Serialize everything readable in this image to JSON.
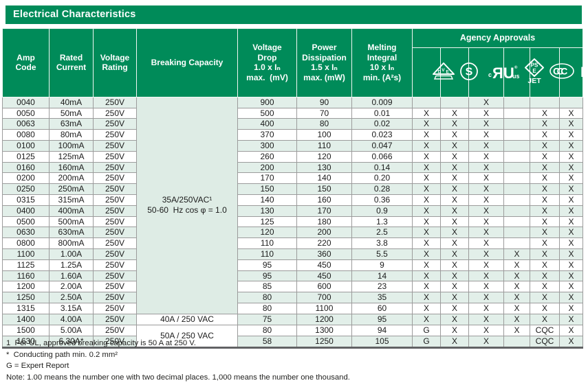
{
  "title": "Electrical Characteristics",
  "header": {
    "amp_code": "Amp\nCode",
    "rated_current": "Rated\nCurrent",
    "voltage_rating": "Voltage\nRating",
    "breaking_capacity": "Breaking Capacity",
    "voltage_drop": "Voltage\nDrop\n1.0 x Iₙ\nmax.  (mV)",
    "power_dissipation": "Power\nDissipation\n1.5 x Iₙ\nmax. (mW)",
    "melting_integral": "Melting\nIntegral\n10 x Iₙ\nmin. (A²s)",
    "agency_approvals": "Agency Approvals",
    "agency_icons": [
      "vde",
      "semko-s",
      "ul-recognized",
      "pse-jet",
      "ccc",
      "kc"
    ]
  },
  "breaking_capacity_groups": [
    {
      "label": "35A/250VAC¹\n50-60  Hz cos φ = 1.0",
      "row_span": 20,
      "background": "mint"
    },
    {
      "label": "40A / 250 VAC",
      "row_span": 1,
      "background": "white"
    },
    {
      "label": "50A / 250 VAC",
      "row_span": 2,
      "background": "white"
    }
  ],
  "rows": [
    {
      "amp_code": "0040",
      "rated_current": "40mA",
      "voltage_rating": "250V",
      "voltage_drop": "900",
      "power_dissipation": "90",
      "melting_integral": "0.009",
      "approvals": [
        "",
        "",
        "X",
        "",
        "",
        ""
      ]
    },
    {
      "amp_code": "0050",
      "rated_current": "50mA",
      "voltage_rating": "250V",
      "voltage_drop": "500",
      "power_dissipation": "70",
      "melting_integral": "0.01",
      "approvals": [
        "X",
        "X",
        "X",
        "",
        "X",
        "X"
      ]
    },
    {
      "amp_code": "0063",
      "rated_current": "63mA",
      "voltage_rating": "250V",
      "voltage_drop": "400",
      "power_dissipation": "80",
      "melting_integral": "0.02",
      "approvals": [
        "X",
        "X",
        "X",
        "",
        "X",
        "X"
      ]
    },
    {
      "amp_code": "0080",
      "rated_current": "80mA",
      "voltage_rating": "250V",
      "voltage_drop": "370",
      "power_dissipation": "100",
      "melting_integral": "0.023",
      "approvals": [
        "X",
        "X",
        "X",
        "",
        "X",
        "X"
      ]
    },
    {
      "amp_code": "0100",
      "rated_current": "100mA",
      "voltage_rating": "250V",
      "voltage_drop": "300",
      "power_dissipation": "110",
      "melting_integral": "0.047",
      "approvals": [
        "X",
        "X",
        "X",
        "",
        "X",
        "X"
      ]
    },
    {
      "amp_code": "0125",
      "rated_current": "125mA",
      "voltage_rating": "250V",
      "voltage_drop": "260",
      "power_dissipation": "120",
      "melting_integral": "0.066",
      "approvals": [
        "X",
        "X",
        "X",
        "",
        "X",
        "X"
      ]
    },
    {
      "amp_code": "0160",
      "rated_current": "160mA",
      "voltage_rating": "250V",
      "voltage_drop": "200",
      "power_dissipation": "130",
      "melting_integral": "0.14",
      "approvals": [
        "X",
        "X",
        "X",
        "",
        "X",
        "X"
      ]
    },
    {
      "amp_code": "0200",
      "rated_current": "200mA",
      "voltage_rating": "250V",
      "voltage_drop": "170",
      "power_dissipation": "140",
      "melting_integral": "0.20",
      "approvals": [
        "X",
        "X",
        "X",
        "",
        "X",
        "X"
      ]
    },
    {
      "amp_code": "0250",
      "rated_current": "250mA",
      "voltage_rating": "250V",
      "voltage_drop": "150",
      "power_dissipation": "150",
      "melting_integral": "0.28",
      "approvals": [
        "X",
        "X",
        "X",
        "",
        "X",
        "X"
      ]
    },
    {
      "amp_code": "0315",
      "rated_current": "315mA",
      "voltage_rating": "250V",
      "voltage_drop": "140",
      "power_dissipation": "160",
      "melting_integral": "0.36",
      "approvals": [
        "X",
        "X",
        "X",
        "",
        "X",
        "X"
      ]
    },
    {
      "amp_code": "0400",
      "rated_current": "400mA",
      "voltage_rating": "250V",
      "voltage_drop": "130",
      "power_dissipation": "170",
      "melting_integral": "0.9",
      "approvals": [
        "X",
        "X",
        "X",
        "",
        "X",
        "X"
      ]
    },
    {
      "amp_code": "0500",
      "rated_current": "500mA",
      "voltage_rating": "250V",
      "voltage_drop": "125",
      "power_dissipation": "180",
      "melting_integral": "1.3",
      "approvals": [
        "X",
        "X",
        "X",
        "",
        "X",
        "X"
      ]
    },
    {
      "amp_code": "0630",
      "rated_current": "630mA",
      "voltage_rating": "250V",
      "voltage_drop": "120",
      "power_dissipation": "200",
      "melting_integral": "2.5",
      "approvals": [
        "X",
        "X",
        "X",
        "",
        "X",
        "X"
      ]
    },
    {
      "amp_code": "0800",
      "rated_current": "800mA",
      "voltage_rating": "250V",
      "voltage_drop": "110",
      "power_dissipation": "220",
      "melting_integral": "3.8",
      "approvals": [
        "X",
        "X",
        "X",
        "",
        "X",
        "X"
      ]
    },
    {
      "amp_code": "1100",
      "rated_current": "1.00A",
      "voltage_rating": "250V",
      "voltage_drop": "110",
      "power_dissipation": "360",
      "melting_integral": "5.5",
      "approvals": [
        "X",
        "X",
        "X",
        "X",
        "X",
        "X"
      ]
    },
    {
      "amp_code": "1125",
      "rated_current": "1.25A",
      "voltage_rating": "250V",
      "voltage_drop": "95",
      "power_dissipation": "450",
      "melting_integral": "9",
      "approvals": [
        "X",
        "X",
        "X",
        "X",
        "X",
        "X"
      ]
    },
    {
      "amp_code": "1160",
      "rated_current": "1.60A",
      "voltage_rating": "250V",
      "voltage_drop": "95",
      "power_dissipation": "450",
      "melting_integral": "14",
      "approvals": [
        "X",
        "X",
        "X",
        "X",
        "X",
        "X"
      ]
    },
    {
      "amp_code": "1200",
      "rated_current": "2.00A",
      "voltage_rating": "250V",
      "voltage_drop": "85",
      "power_dissipation": "600",
      "melting_integral": "23",
      "approvals": [
        "X",
        "X",
        "X",
        "X",
        "X",
        "X"
      ]
    },
    {
      "amp_code": "1250",
      "rated_current": "2.50A",
      "voltage_rating": "250V",
      "voltage_drop": "80",
      "power_dissipation": "700",
      "melting_integral": "35",
      "approvals": [
        "X",
        "X",
        "X",
        "X",
        "X",
        "X"
      ]
    },
    {
      "amp_code": "1315",
      "rated_current": "3.15A",
      "voltage_rating": "250V",
      "voltage_drop": "80",
      "power_dissipation": "1100",
      "melting_integral": "60",
      "approvals": [
        "X",
        "X",
        "X",
        "X",
        "X",
        "X"
      ]
    },
    {
      "amp_code": "1400",
      "rated_current": "4.00A",
      "voltage_rating": "250V",
      "voltage_drop": "75",
      "power_dissipation": "1200",
      "melting_integral": "95",
      "approvals": [
        "X",
        "X",
        "X",
        "X",
        "X",
        "X"
      ]
    },
    {
      "amp_code": "1500",
      "rated_current": "5.00A",
      "voltage_rating": "250V",
      "voltage_drop": "80",
      "power_dissipation": "1300",
      "melting_integral": "94",
      "approvals": [
        "G",
        "X",
        "X",
        "X",
        "CQC",
        "X"
      ]
    },
    {
      "amp_code": "1630",
      "rated_current": "6.30A*",
      "voltage_rating": "250V",
      "voltage_drop": "58",
      "power_dissipation": "1250",
      "melting_integral": "105",
      "approvals": [
        "G",
        "X",
        "X",
        "",
        "CQC",
        "X"
      ]
    }
  ],
  "footnotes": [
    "1  Per UL, approved breaking capacity is 50 A at 250 V.",
    "*  Conducting path min. 0.2 mm²",
    "G = Expert Report",
    "Note: 1.00 means the number one with two decimal places. 1,000 means the number one thousand."
  ],
  "colors": {
    "brand_green": "#008b59",
    "row_mint": "#e2efe9",
    "border_gray": "#9b9b9b",
    "bottom_bar": "#616264",
    "text": "#1a1a1a"
  }
}
